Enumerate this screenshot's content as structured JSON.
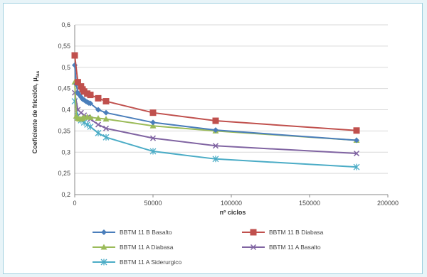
{
  "chart_data": {
    "type": "line",
    "xlabel": "nº ciclos",
    "ylabel": "Coeficiente de fricción, μ",
    "ylabel_sub": "fas",
    "xlim": [
      0,
      200000
    ],
    "ylim": [
      0.2,
      0.6
    ],
    "x_ticks": [
      0,
      50000,
      100000,
      150000,
      200000
    ],
    "x_tick_labels": [
      "0",
      "50000",
      "100000",
      "150000",
      "200000"
    ],
    "y_ticks": [
      0.2,
      0.25,
      0.3,
      0.35,
      0.4,
      0.45,
      0.5,
      0.55,
      0.6
    ],
    "y_tick_labels": [
      "0,2",
      "0,25",
      "0,3",
      "0,35",
      "0,4",
      "0,45",
      "0,5",
      "0,55",
      "0,6"
    ],
    "grid": "horizontal",
    "legend_position": "bottom",
    "series": [
      {
        "name": "BBTM 11 B Basalto",
        "color": "#4a7ebb",
        "marker": "diamond",
        "x": [
          0,
          1000,
          2000,
          3000,
          4000,
          5000,
          6000,
          7000,
          8000,
          9000,
          10000,
          15000,
          20000,
          50000,
          90000,
          180000
        ],
        "y": [
          0.505,
          0.46,
          0.44,
          0.435,
          0.43,
          0.425,
          0.423,
          0.42,
          0.418,
          0.416,
          0.415,
          0.4,
          0.393,
          0.37,
          0.352,
          0.328
        ]
      },
      {
        "name": "BBTM 11 B Diabasa",
        "color": "#c0504d",
        "marker": "square",
        "x": [
          0,
          2000,
          4000,
          5000,
          6000,
          8000,
          10000,
          15000,
          20000,
          50000,
          90000,
          180000
        ],
        "y": [
          0.528,
          0.465,
          0.455,
          0.448,
          0.443,
          0.438,
          0.435,
          0.427,
          0.42,
          0.393,
          0.374,
          0.351
        ]
      },
      {
        "name": "BBTM 11 A  Diabasa",
        "color": "#9bbb59",
        "marker": "triangle",
        "x": [
          0,
          1000,
          2000,
          3000,
          4000,
          5000,
          6000,
          8000,
          10000,
          15000,
          20000,
          50000,
          90000,
          180000
        ],
        "y": [
          0.465,
          0.385,
          0.38,
          0.378,
          0.378,
          0.38,
          0.382,
          0.383,
          0.382,
          0.38,
          0.378,
          0.362,
          0.35,
          0.328
        ]
      },
      {
        "name": "BBTM 11 A  Basalto",
        "color": "#8064a2",
        "marker": "x",
        "x": [
          0,
          2000,
          4000,
          6000,
          8000,
          10000,
          15000,
          20000,
          50000,
          90000,
          180000
        ],
        "y": [
          0.44,
          0.4,
          0.393,
          0.387,
          0.382,
          0.378,
          0.365,
          0.356,
          0.333,
          0.315,
          0.297
        ]
      },
      {
        "name": "BBTM 11 A Siderurgico",
        "color": "#4bacc6",
        "marker": "star",
        "x": [
          0,
          2000,
          4000,
          6000,
          8000,
          10000,
          15000,
          20000,
          50000,
          90000,
          180000
        ],
        "y": [
          0.42,
          0.385,
          0.375,
          0.37,
          0.365,
          0.36,
          0.345,
          0.335,
          0.302,
          0.284,
          0.265
        ]
      }
    ]
  }
}
